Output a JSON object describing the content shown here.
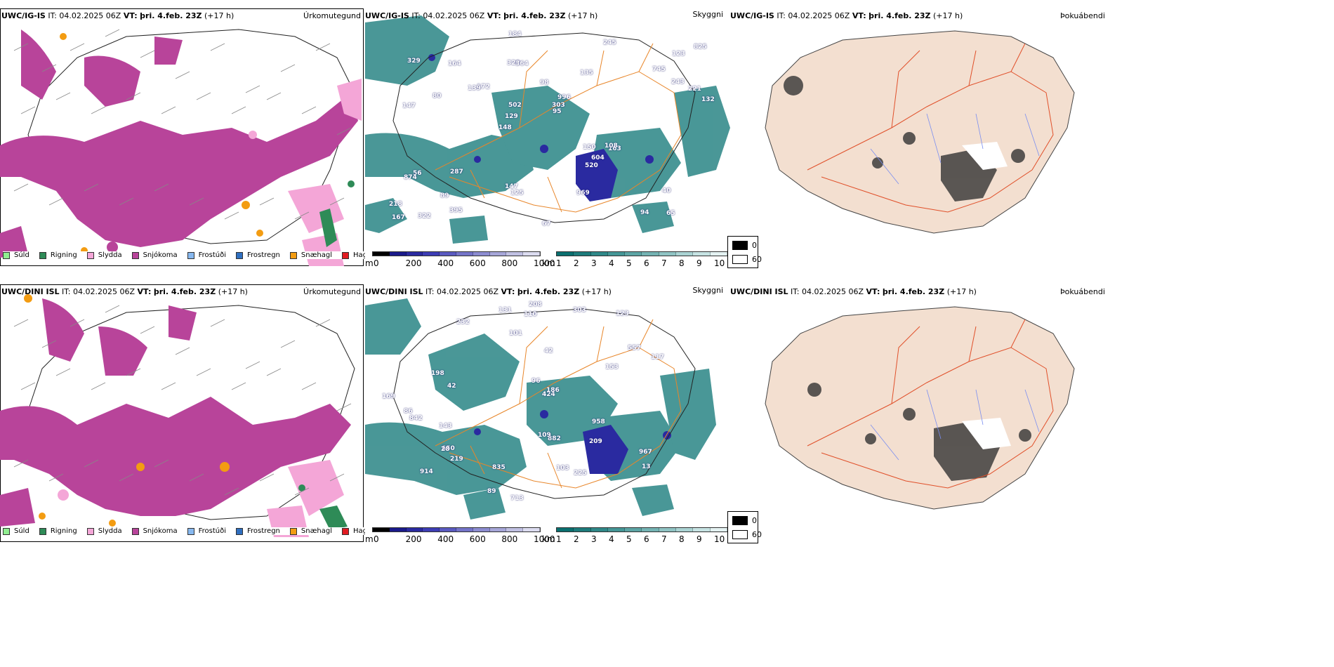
{
  "rows": [
    {
      "model": "UWC/IG-IS",
      "it_label": "IT:",
      "it_value": "04.02.2025 06Z",
      "vt_label": "VT:",
      "vt_value": "þri. 4.feb. 23Z",
      "lead": "(+17 h)",
      "panel_titles": [
        "Úrkomutegund",
        "Skyggni",
        "Þokuábendi"
      ],
      "numbers_top": [
        "65",
        "147",
        "123",
        "148",
        "135",
        "322",
        "320",
        "98",
        "56",
        "172",
        "218",
        "89",
        "364",
        "996",
        "163",
        "329",
        "184",
        "132",
        "150",
        "243",
        "129",
        "147",
        "502",
        "164",
        "245",
        "287",
        "94",
        "40",
        "108",
        "67",
        "139",
        "80",
        "520",
        "395",
        "221",
        "303",
        "167",
        "125",
        "95",
        "874",
        "745",
        "825",
        "604",
        "969"
      ],
      "numbers_bottom": []
    },
    {
      "model": "UWC/DINI ISL",
      "it_label": "IT:",
      "it_value": "04.02.2025 06Z",
      "vt_label": "VT:",
      "vt_value": "þri. 4.feb. 23Z",
      "lead": "(+17 h)",
      "panel_titles": [
        "Úrkomutegund",
        "Skyggni",
        "Þokuábendi"
      ],
      "numbers_top": [
        "914",
        "123",
        "232",
        "557",
        "882",
        "42",
        "143",
        "650",
        "117",
        "153",
        "86",
        "208",
        "209",
        "424",
        "713",
        "131",
        "13",
        "169",
        "28",
        "89",
        "225",
        "110",
        "101",
        "186",
        "96",
        "835",
        "842",
        "303",
        "42",
        "958",
        "198",
        "219",
        "103",
        "109",
        "967"
      ],
      "numbers_bottom": []
    }
  ],
  "precip_legend": [
    {
      "label": "Súld",
      "color": "#90ee90"
    },
    {
      "label": "Rigning",
      "color": "#2e8b57"
    },
    {
      "label": "Slydda",
      "color": "#f4a6d7"
    },
    {
      "label": "Snjókoma",
      "color": "#b8449a"
    },
    {
      "label": "Frostúði",
      "color": "#87b8ef"
    },
    {
      "label": "Frostregn",
      "color": "#2f6fc0"
    },
    {
      "label": "Snæhagl",
      "color": "#f39c12"
    },
    {
      "label": "Haglél",
      "color": "#e11b22"
    }
  ],
  "ceiling_bar": {
    "unit": "m",
    "ticks": [
      "0",
      "200",
      "400",
      "600",
      "800",
      "1000"
    ],
    "colors": [
      "#000000",
      "#1a1a8a",
      "#2a2aa0",
      "#3d3db4",
      "#5a5ac0",
      "#7474c8",
      "#8c8cd0",
      "#a6a6d8",
      "#c0c0e2",
      "#dcdcf0"
    ]
  },
  "visibility_bar": {
    "unit": "km",
    "ticks": [
      "1",
      "2",
      "3",
      "4",
      "5",
      "6",
      "7",
      "8",
      "9",
      "10"
    ],
    "colors": [
      "#0a6f6f",
      "#1d7b7b",
      "#2f8888",
      "#449696",
      "#5ca4a4",
      "#74b3b3",
      "#8fc3c3",
      "#aad3d3",
      "#c6e3e3",
      "#e4f2f2"
    ]
  },
  "fog_legend": {
    "black_label": "0",
    "white_label": "60"
  },
  "colors": {
    "snow": "#b8449a",
    "sleet": "#f4a6d7",
    "rain": "#2e8b57",
    "vis_teal": "#2a8585",
    "ceiling_blue": "#2a2aa0",
    "roads": "#e8862a",
    "land_fog": "#f3dfd0",
    "fog_roads": "#e0502a",
    "rivers": "#7a8ef0"
  }
}
